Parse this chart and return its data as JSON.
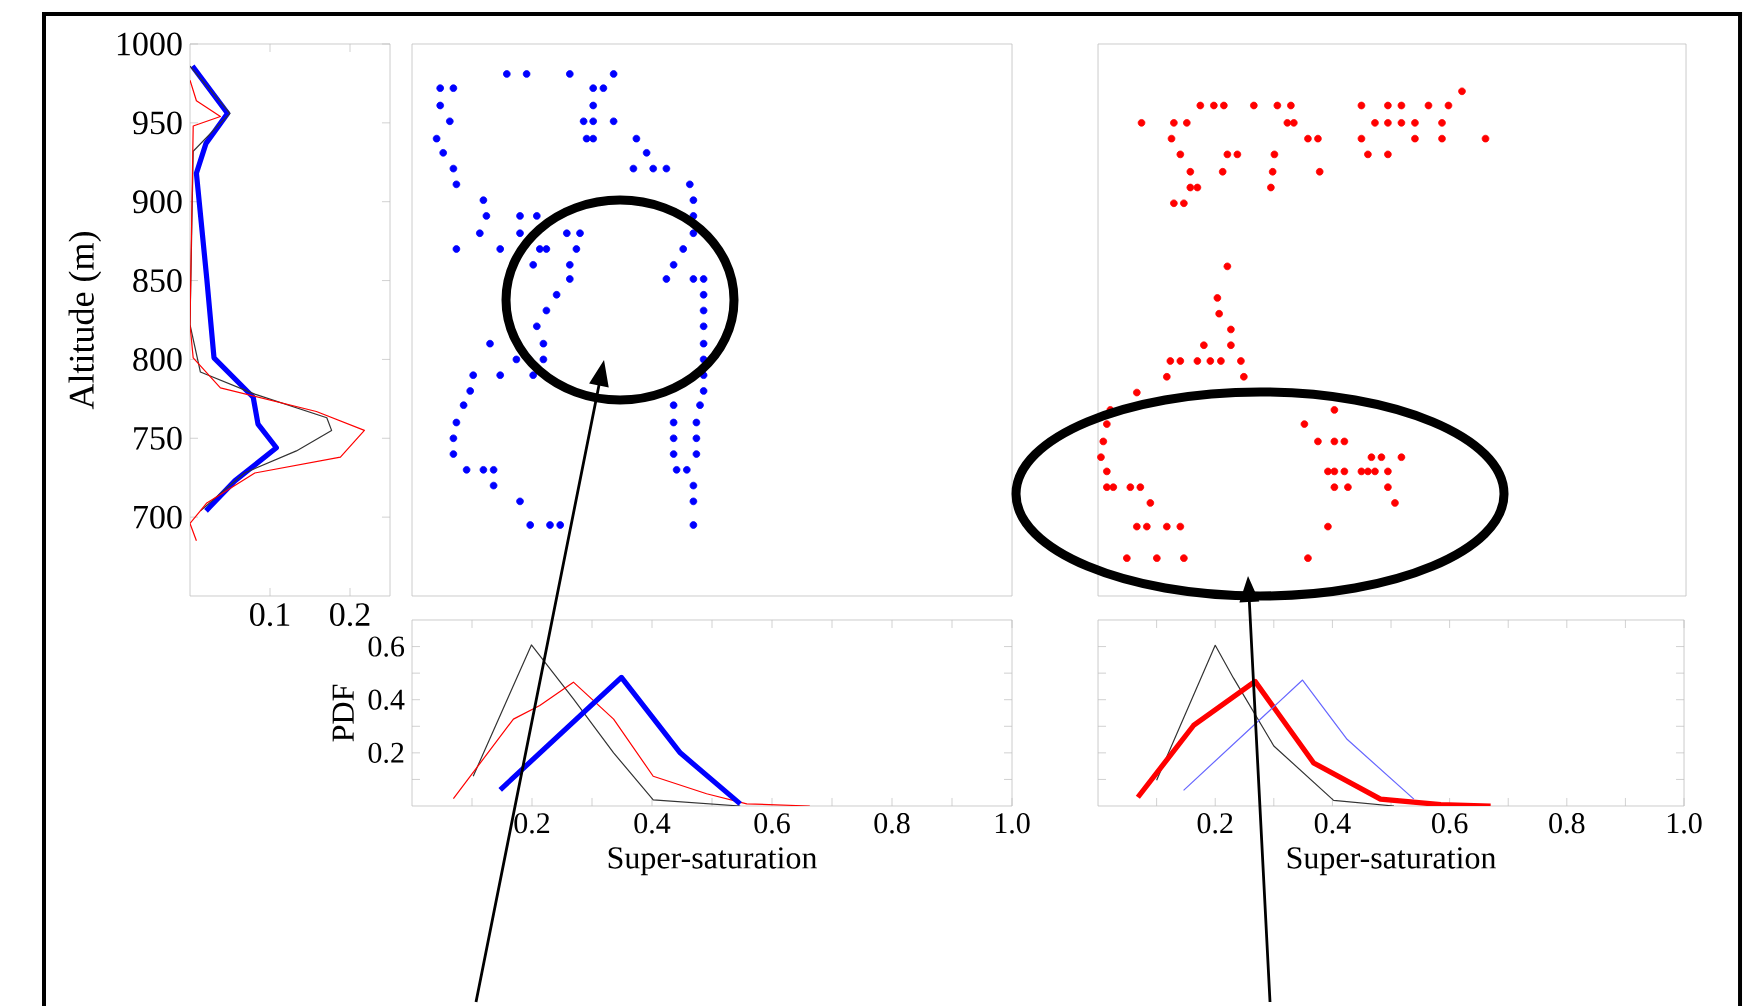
{
  "chart_data": [
    {
      "type": "line",
      "ylabel": "Altitude (m)",
      "xlim": [
        0,
        0.25
      ],
      "ylim": [
        650,
        1000
      ],
      "xticks": [
        0.1,
        0.2
      ],
      "yticks": [
        700,
        750,
        800,
        850,
        900,
        950,
        1000
      ],
      "series": [
        {
          "color": "#0000ff",
          "x": [
            0.003,
            0.047,
            0.02,
            0.008,
            0.021,
            0.03,
            0.079,
            0.085,
            0.108,
            0.056,
            0.02
          ],
          "values": [
            986,
            956,
            937,
            918,
            851,
            801,
            776,
            759,
            744,
            723,
            704
          ]
        },
        {
          "color": "#333333",
          "x": [
            0.0,
            0.05,
            0.004,
            0.0,
            0.013,
            0.081,
            0.171,
            0.177,
            0.133,
            0.068,
            0.013
          ],
          "values": [
            986,
            956,
            932,
            822,
            792,
            778,
            763,
            755,
            742,
            728,
            704
          ]
        },
        {
          "color": "#ff0000",
          "x": [
            0.0,
            0.008,
            0.038,
            0.004,
            0.0,
            0.004,
            0.038,
            0.158,
            0.218,
            0.188,
            0.081,
            0.021,
            0.0,
            0.008
          ],
          "values": [
            977,
            964,
            954,
            948,
            822,
            801,
            782,
            767,
            755,
            738,
            728,
            709,
            696,
            685
          ]
        }
      ]
    },
    {
      "type": "scatter",
      "marker": "circle",
      "tick_labels": false,
      "xlim": [
        0,
        1
      ],
      "ylim": [
        650,
        1000
      ],
      "series": [
        {
          "color": "#0000ff",
          "x": [
            0.158,
            0.191,
            0.263,
            0.336,
            0.047,
            0.069,
            0.302,
            0.319,
            0.047,
            0.302,
            0.063,
            0.286,
            0.302,
            0.336,
            0.041,
            0.291,
            0.302,
            0.374,
            0.052,
            0.391,
            0.069,
            0.369,
            0.402,
            0.424,
            0.074,
            0.463,
            0.119,
            0.469,
            0.124,
            0.18,
            0.208,
            0.469,
            0.113,
            0.18,
            0.258,
            0.28,
            0.469,
            0.074,
            0.147,
            0.213,
            0.224,
            0.274,
            0.452,
            0.202,
            0.263,
            0.436,
            0.263,
            0.424,
            0.469,
            0.486,
            0.241,
            0.486,
            0.224,
            0.486,
            0.208,
            0.486,
            0.13,
            0.219,
            0.486,
            0.174,
            0.219,
            0.486,
            0.102,
            0.147,
            0.202,
            0.486,
            0.097,
            0.486,
            0.086,
            0.436,
            0.48,
            0.074,
            0.436,
            0.474,
            0.069,
            0.436,
            0.474,
            0.069,
            0.436,
            0.474,
            0.091,
            0.119,
            0.136,
            0.441,
            0.458,
            0.136,
            0.469,
            0.18,
            0.469,
            0.197,
            0.23,
            0.247,
            0.469
          ],
          "values": [
            981,
            981,
            981,
            981,
            972,
            972,
            972,
            972,
            961,
            961,
            951,
            951,
            951,
            951,
            940,
            940,
            940,
            940,
            931,
            931,
            921,
            921,
            921,
            921,
            911,
            911,
            901,
            901,
            891,
            891,
            891,
            891,
            880,
            880,
            880,
            880,
            880,
            870,
            870,
            870,
            870,
            870,
            870,
            860,
            860,
            860,
            851,
            851,
            851,
            851,
            841,
            841,
            831,
            831,
            821,
            821,
            810,
            810,
            810,
            800,
            800,
            800,
            790,
            790,
            790,
            790,
            780,
            780,
            771,
            771,
            771,
            760,
            760,
            760,
            750,
            750,
            750,
            740,
            740,
            740,
            730,
            730,
            730,
            730,
            730,
            720,
            720,
            710,
            710,
            695,
            695,
            695,
            695
          ]
        }
      ]
    },
    {
      "type": "scatter",
      "marker": "circle",
      "tick_labels": false,
      "xlim": [
        0,
        1
      ],
      "ylim": [
        650,
        1000
      ],
      "series": [
        {
          "color": "#ff0000",
          "x": [
            0.619,
            0.174,
            0.197,
            0.214,
            0.265,
            0.305,
            0.328,
            0.448,
            0.493,
            0.516,
            0.562,
            0.596,
            0.074,
            0.129,
            0.151,
            0.322,
            0.333,
            0.471,
            0.493,
            0.516,
            0.539,
            0.585,
            0.125,
            0.357,
            0.374,
            0.448,
            0.539,
            0.585,
            0.659,
            0.14,
            0.22,
            0.237,
            0.3,
            0.459,
            0.493,
            0.157,
            0.212,
            0.297,
            0.377,
            0.157,
            0.169,
            0.294,
            0.129,
            0.146,
            0.22,
            0.203,
            0.206,
            0.226,
            0.18,
            0.226,
            0.123,
            0.14,
            0.169,
            0.191,
            0.209,
            0.243,
            0.117,
            0.248,
            0.066,
            0.021,
            0.402,
            0.015,
            0.351,
            0.009,
            0.374,
            0.402,
            0.419,
            0.005,
            0.465,
            0.482,
            0.516,
            0.015,
            0.391,
            0.402,
            0.419,
            0.448,
            0.459,
            0.471,
            0.493,
            0.015,
            0.026,
            0.055,
            0.072,
            0.402,
            0.425,
            0.493,
            0.089,
            0.505,
            0.066,
            0.083,
            0.117,
            0.14,
            0.391,
            0.049,
            0.1,
            0.146,
            0.357
          ],
          "values": [
            970,
            961,
            961,
            961,
            961,
            961,
            961,
            961,
            961,
            961,
            961,
            961,
            950,
            950,
            950,
            950,
            950,
            950,
            950,
            950,
            950,
            950,
            940,
            940,
            940,
            940,
            940,
            940,
            940,
            930,
            930,
            930,
            930,
            930,
            930,
            919,
            919,
            919,
            919,
            909,
            909,
            909,
            899,
            899,
            859,
            839,
            829,
            819,
            809,
            809,
            799,
            799,
            799,
            799,
            799,
            799,
            789,
            789,
            779,
            768,
            768,
            759,
            759,
            748,
            748,
            748,
            748,
            738,
            738,
            738,
            738,
            729,
            729,
            729,
            729,
            729,
            729,
            729,
            729,
            719,
            719,
            719,
            719,
            719,
            719,
            719,
            709,
            709,
            694,
            694,
            694,
            694,
            694,
            674,
            674,
            674,
            674
          ]
        }
      ]
    },
    {
      "type": "line",
      "xlabel": "Super-saturation",
      "ylabel": "PDF",
      "xlim": [
        0,
        1
      ],
      "ylim": [
        0,
        0.7
      ],
      "xticks": [
        {
          "value": 0.1,
          "label": null
        },
        0.2,
        {
          "value": 0.3,
          "label": null
        },
        0.4,
        {
          "value": 0.5,
          "label": null
        },
        0.6,
        {
          "value": 0.7,
          "label": null
        },
        0.8,
        {
          "value": 0.9,
          "label": null
        },
        {
          "value": 1,
          "label": "1.0"
        }
      ],
      "yticks": [
        {
          "value": 0.1,
          "label": null
        },
        0.2,
        {
          "value": 0.3,
          "label": null
        },
        0.4,
        {
          "value": 0.5,
          "label": null
        },
        0.6
      ],
      "series": [
        {
          "color": "#333333",
          "x": [
            0.102,
            0.199,
            0.269,
            0.336,
            0.402,
            0.547
          ],
          "values": [
            0.112,
            0.606,
            0.403,
            0.2,
            0.023,
            0
          ]
        },
        {
          "color": "#ff0000",
          "x": [
            0.069,
            0.169,
            0.213,
            0.269,
            0.336,
            0.402,
            0.491,
            0.558,
            0.663
          ],
          "values": [
            0.028,
            0.327,
            0.378,
            0.466,
            0.327,
            0.112,
            0.046,
            0.008,
            0
          ]
        },
        {
          "color": "#0000ff",
          "x": [
            0.147,
            0.349,
            0.447,
            0.547
          ],
          "values": [
            0.061,
            0.484,
            0.2,
            0.008
          ]
        }
      ]
    },
    {
      "type": "line",
      "xlabel": "Super-saturation",
      "tick_labels": "x",
      "xlim": [
        0,
        1
      ],
      "ylim": [
        0,
        0.7
      ],
      "xticks": [
        {
          "value": 0.1,
          "label": null
        },
        0.2,
        {
          "value": 0.3,
          "label": null
        },
        0.4,
        {
          "value": 0.5,
          "label": null
        },
        0.6,
        {
          "value": 0.7,
          "label": null
        },
        0.8,
        {
          "value": 0.9,
          "label": null
        },
        {
          "value": 1,
          "label": "1.0"
        }
      ],
      "yticks": [
        {
          "value": 0.1,
          "label": null
        },
        {
          "value": 0.2,
          "label": null
        },
        {
          "value": 0.3,
          "label": null
        },
        {
          "value": 0.4,
          "label": null
        },
        {
          "value": 0.5,
          "label": null
        },
        {
          "value": 0.6,
          "label": null
        }
      ],
      "series": [
        {
          "color": "#333333",
          "x": [
            0.1,
            0.2,
            0.231,
            0.3,
            0.402,
            0.505
          ],
          "values": [
            0.097,
            0.605,
            0.482,
            0.226,
            0.021,
            0
          ]
        },
        {
          "color": "#ff0000",
          "x": [
            0.068,
            0.163,
            0.268,
            0.368,
            0.482,
            0.585,
            0.67
          ],
          "values": [
            0.033,
            0.303,
            0.469,
            0.162,
            0.026,
            0.005,
            0
          ]
        },
        {
          "color": "#6666ff",
          "x": [
            0.146,
            0.349,
            0.425,
            0.539
          ],
          "values": [
            0.059,
            0.474,
            0.251,
            0.026
          ]
        }
      ]
    }
  ]
}
